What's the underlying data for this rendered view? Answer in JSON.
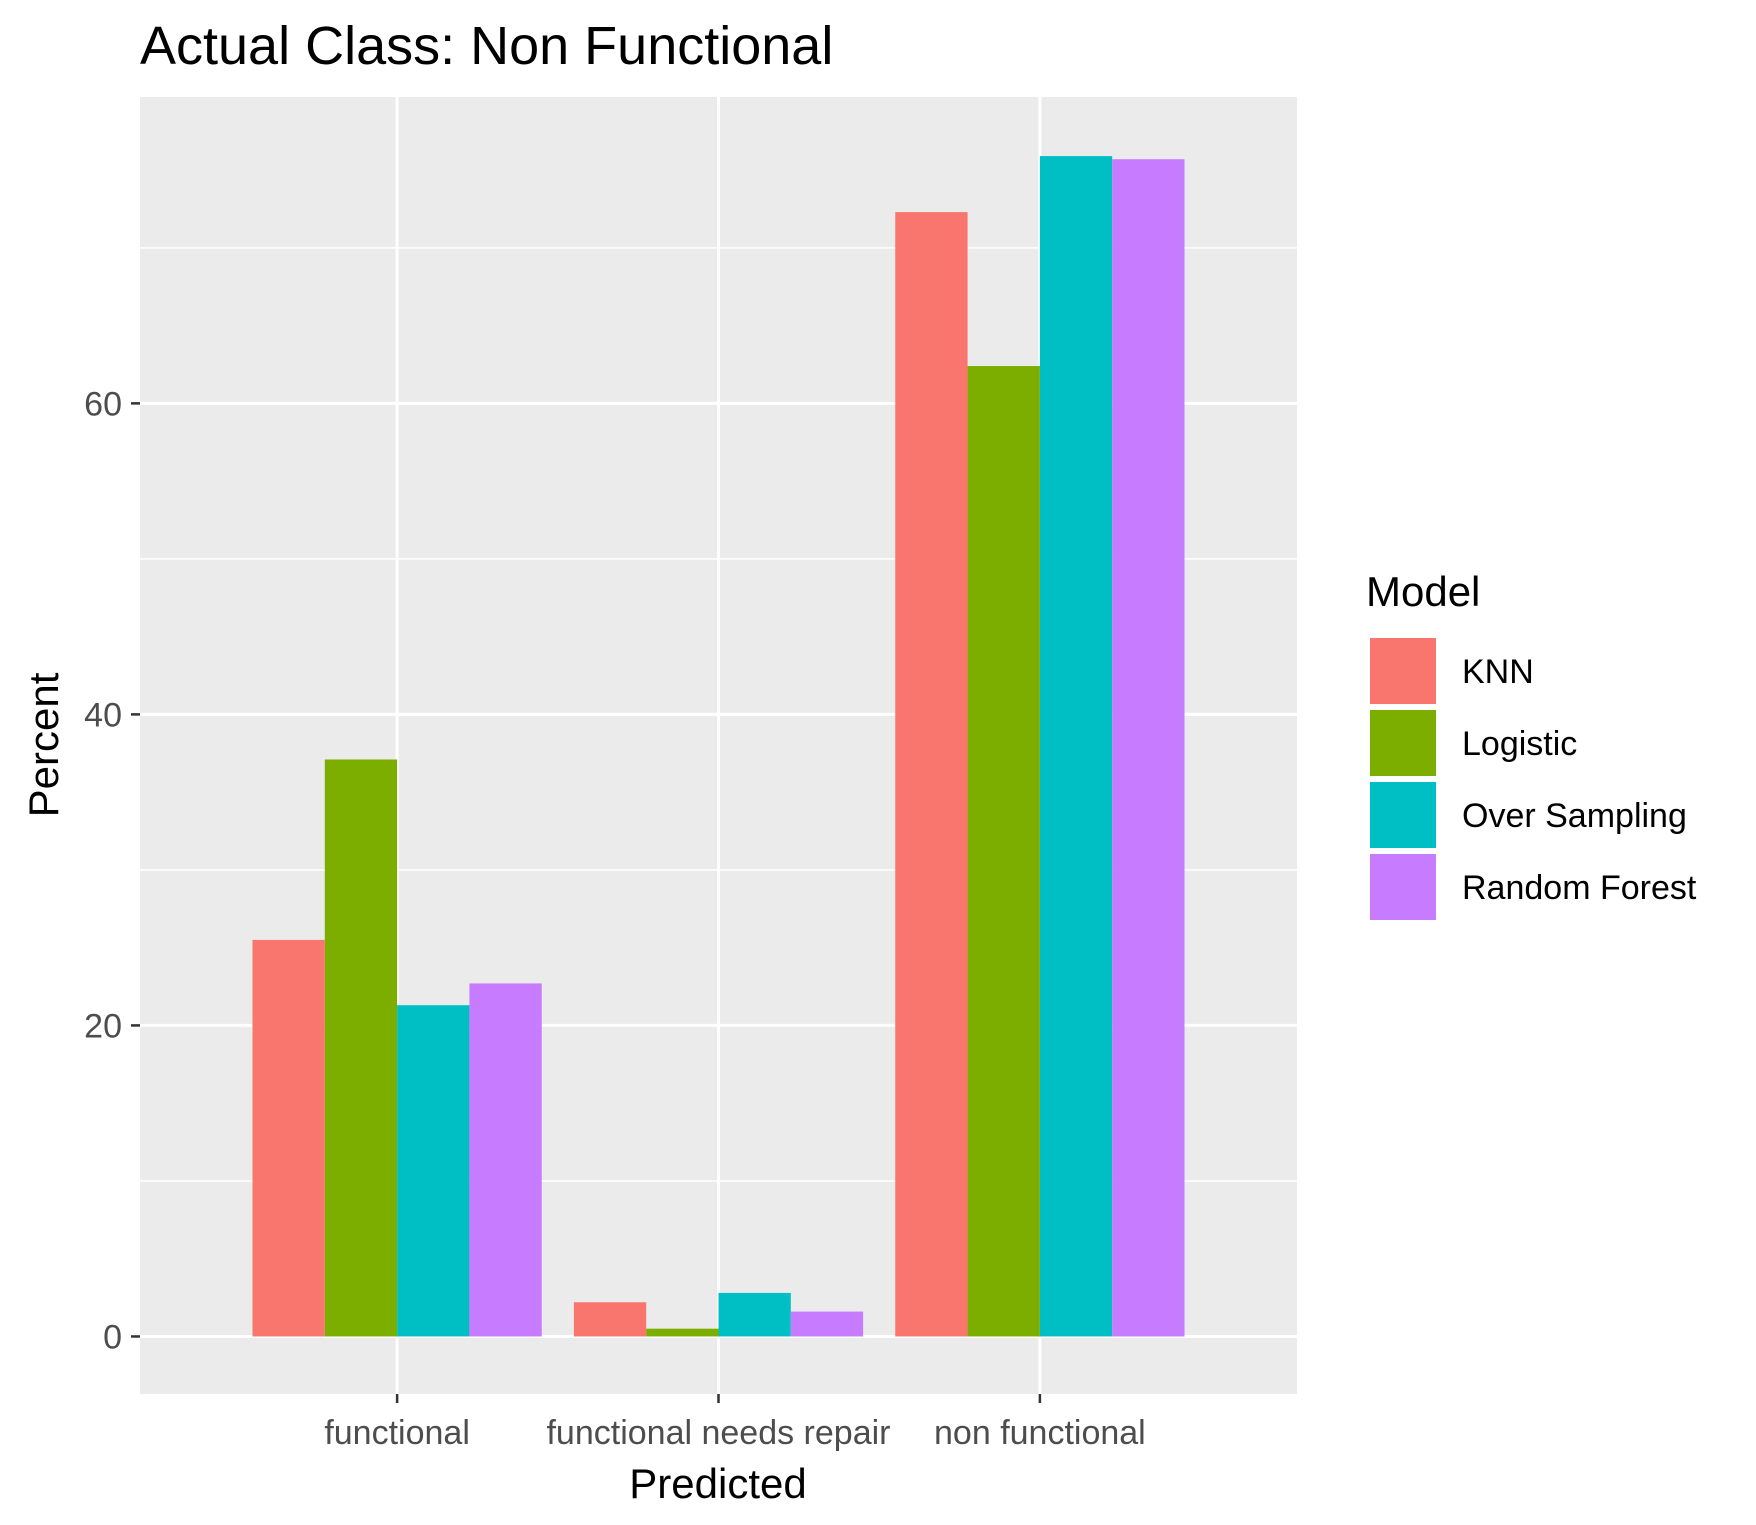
{
  "chart_data": {
    "type": "bar",
    "title": "Actual Class: Non Functional",
    "xlabel": "Predicted",
    "ylabel": "Percent",
    "categories": [
      "functional",
      "functional needs repair",
      "non functional"
    ],
    "series": [
      {
        "name": "KNN",
        "color": "#F8766D",
        "values": [
          25.5,
          2.2,
          72.3
        ]
      },
      {
        "name": "Logistic",
        "color": "#7CAE00",
        "values": [
          37.1,
          0.5,
          62.4
        ]
      },
      {
        "name": "Over Sampling",
        "color": "#00BFC4",
        "values": [
          21.3,
          2.8,
          75.9
        ]
      },
      {
        "name": "Random Forest",
        "color": "#C77CFF",
        "values": [
          22.7,
          1.6,
          75.7
        ]
      }
    ],
    "ylim": [
      -3.7,
      79.7
    ],
    "yticks": [
      0,
      20,
      40,
      60
    ],
    "yticklabels": [
      "0",
      "20",
      "40",
      "60"
    ],
    "grid": true,
    "legend": {
      "title": "Model",
      "position": "right"
    },
    "panel_color": "#EBEBEB"
  }
}
